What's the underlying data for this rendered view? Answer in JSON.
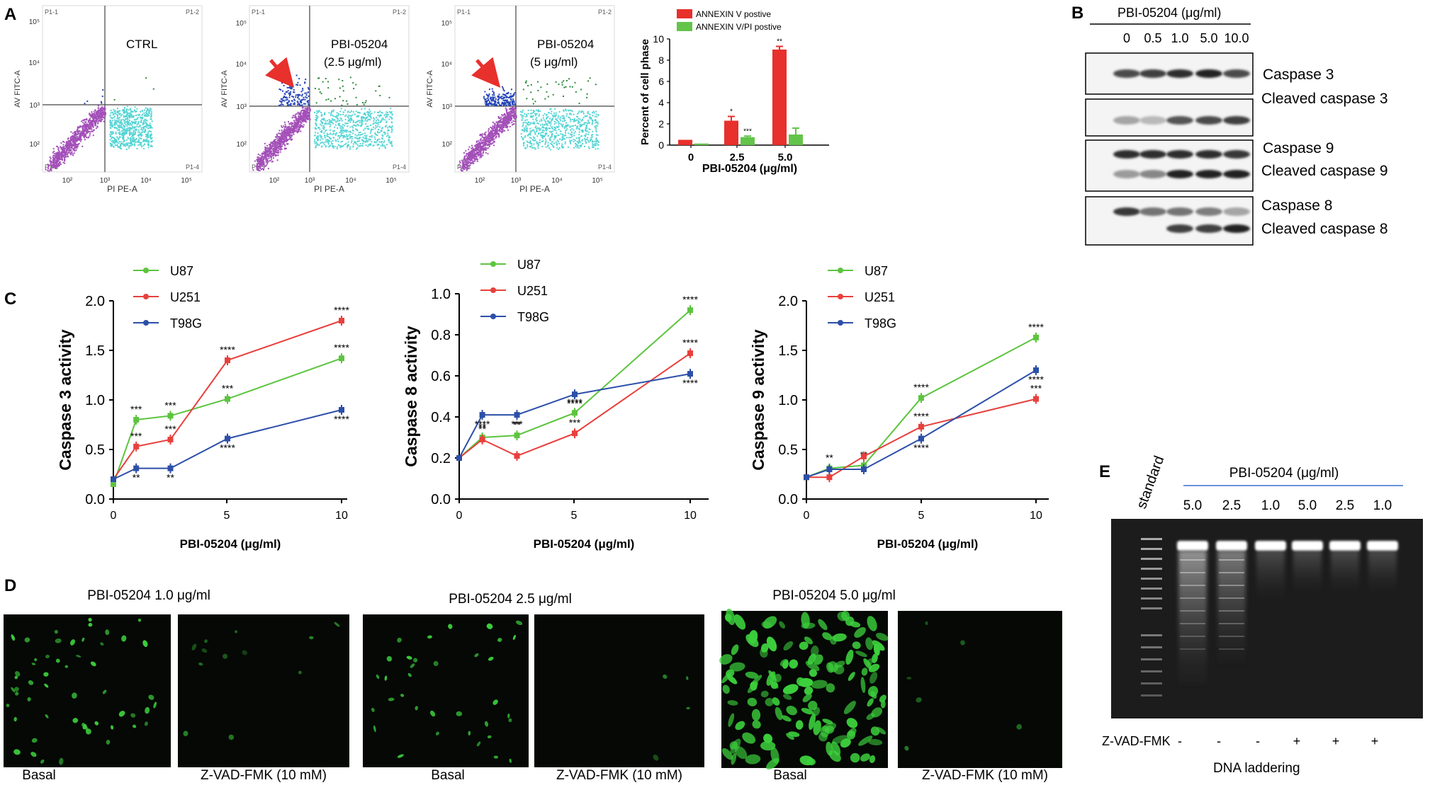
{
  "figure": {
    "panel_labels": [
      "A",
      "B",
      "C",
      "D",
      "E"
    ],
    "colors": {
      "u87": "#5cc43f",
      "u251": "#e8403c",
      "t98g": "#2c4fa8",
      "annexin_v": "#e8302c",
      "annexin_pi": "#63c44a",
      "flow_live": "#a34fb8",
      "flow_dead": "#56d4d4",
      "flow_early": "#2444b8",
      "flow_late": "#2e8a3a",
      "arrow": "#e8302c",
      "gel_bg": "#1c1c1c",
      "cell_green": "#3ccf3c",
      "divider_blue": "#3a6fd0"
    }
  },
  "panel_a": {
    "flow_plots": [
      {
        "quad_labels": [
          "P1-1",
          "P1-2",
          "P1-3",
          "P1-4"
        ],
        "annotation_line1": "CTRL",
        "annotation_line2": "",
        "xlabel": "PI PE-A",
        "ylabel": "AV FITC-A"
      },
      {
        "quad_labels": [
          "P1-1",
          "P1-2",
          "P1-3",
          "P1-4"
        ],
        "annotation_line1": "PBI-05204",
        "annotation_line2": "(2.5 μg/ml)",
        "xlabel": "PI PE-A",
        "ylabel": "AV FITC-A"
      },
      {
        "quad_labels": [
          "P1-1",
          "P1-2",
          "P1-3",
          "P1-4"
        ],
        "annotation_line1": "PBI-05204",
        "annotation_line2": "(5 μg/ml)",
        "xlabel": "PI PE-A",
        "ylabel": "AV FITC-A"
      }
    ],
    "x_ticks": [
      "10²",
      "10³",
      "10⁴",
      "10⁵"
    ],
    "y_ticks": [
      "10²",
      "10³",
      "10⁴",
      "10⁵"
    ],
    "bar_chart": {
      "type": "bar",
      "title": "",
      "xlabel": "PBI-05204 (μg/ml)",
      "ylabel": "Percent of cell phase",
      "ylim": [
        0,
        10
      ],
      "yticks": [
        "0",
        "2",
        "4",
        "6",
        "8",
        "10"
      ],
      "categories": [
        "0",
        "2.5",
        "5.0"
      ],
      "series": [
        {
          "name": "ANNEXIN V postive",
          "values": [
            0.5,
            2.3,
            9.0
          ],
          "errors": [
            0,
            0.4,
            0.3
          ],
          "sig": [
            "",
            "*",
            "**"
          ]
        },
        {
          "name": "ANNEXIN V/PI postive",
          "values": [
            0.15,
            0.75,
            1.0
          ],
          "errors": [
            0,
            0.1,
            0.6
          ],
          "sig": [
            "",
            "***",
            ""
          ]
        }
      ]
    }
  },
  "panel_b": {
    "header": "PBI-05204 (μg/ml)",
    "lanes": [
      "0",
      "0.5",
      "1.0",
      "5.0",
      "10.0"
    ],
    "bands": [
      "Caspase 3",
      "Cleaved caspase 3",
      "Caspase 9",
      "Cleaved caspase 9",
      "Caspase 8",
      "Cleaved caspase 8"
    ]
  },
  "chart_data": [
    {
      "type": "line",
      "title": "",
      "xlabel": "PBI-05204 (μg/ml)",
      "ylabel": "Caspase 3 activity",
      "x": [
        0,
        1,
        2.5,
        5,
        10
      ],
      "xlim": [
        0,
        11
      ],
      "ylim": [
        0,
        2.0
      ],
      "xticks": [
        "0",
        "5",
        "10"
      ],
      "yticks": [
        "0.0",
        "0.5",
        "1.0",
        "1.5",
        "2.0"
      ],
      "series": [
        {
          "name": "U87",
          "values": [
            0.15,
            0.8,
            0.84,
            1.01,
            1.42
          ],
          "sig": [
            "",
            "***",
            "***",
            "***",
            "****"
          ]
        },
        {
          "name": "U251",
          "values": [
            0.2,
            0.53,
            0.6,
            1.4,
            1.8
          ],
          "sig": [
            "",
            "***",
            "***",
            "****",
            "****"
          ]
        },
        {
          "name": "T98G",
          "values": [
            0.2,
            0.31,
            0.31,
            0.61,
            0.9
          ],
          "sig": [
            "",
            "**",
            "**",
            "****",
            "****"
          ]
        }
      ]
    },
    {
      "type": "line",
      "title": "",
      "xlabel": "PBI-05204 (μg/ml)",
      "ylabel": "Caspase 8 activity",
      "x": [
        0,
        1,
        2.5,
        5,
        10
      ],
      "xlim": [
        0,
        11
      ],
      "ylim": [
        0,
        1.0
      ],
      "xticks": [
        "0",
        "5",
        "10"
      ],
      "yticks": [
        "0.0",
        "0.2",
        "0.4",
        "0.6",
        "0.8",
        "1.0"
      ],
      "series": [
        {
          "name": "U87",
          "values": [
            0.2,
            0.3,
            0.31,
            0.42,
            0.92
          ],
          "sig": [
            "",
            "**",
            "**",
            "****",
            "****"
          ]
        },
        {
          "name": "U251",
          "values": [
            0.2,
            0.29,
            0.21,
            0.32,
            0.71
          ],
          "sig": [
            "",
            "**",
            "",
            "***",
            "****"
          ]
        },
        {
          "name": "T98G",
          "values": [
            0.2,
            0.41,
            0.41,
            0.51,
            0.61
          ],
          "sig": [
            "",
            "****",
            "***",
            "****",
            "****"
          ]
        }
      ]
    },
    {
      "type": "line",
      "title": "",
      "xlabel": "PBI-05204 (μg/ml)",
      "ylabel": "Caspase 9 activity",
      "x": [
        0,
        1,
        2.5,
        5,
        10
      ],
      "xlim": [
        0,
        11
      ],
      "ylim": [
        0,
        2.0
      ],
      "xticks": [
        "0",
        "5",
        "10"
      ],
      "yticks": [
        "0.0",
        "0.5",
        "1.0",
        "1.5",
        "2.0"
      ],
      "series": [
        {
          "name": "U87",
          "values": [
            0.22,
            0.31,
            0.34,
            1.02,
            1.63
          ],
          "sig": [
            "",
            "**",
            "**",
            "****",
            "****"
          ]
        },
        {
          "name": "U251",
          "values": [
            0.22,
            0.22,
            0.43,
            0.73,
            1.01
          ],
          "sig": [
            "",
            "",
            "",
            "****",
            "***"
          ]
        },
        {
          "name": "T98G",
          "values": [
            0.22,
            0.3,
            0.3,
            0.61,
            1.3
          ],
          "sig": [
            "",
            "",
            "",
            "****",
            "****"
          ]
        }
      ]
    }
  ],
  "panel_d": {
    "groups": [
      {
        "title": "PBI-05204 1.0 μg/ml",
        "left_caption": "Basal",
        "right_caption": "Z-VAD-FMK (10 mM)"
      },
      {
        "title": "PBI-05204 2.5 μg/ml",
        "left_caption": "Basal",
        "right_caption": "Z-VAD-FMK (10 mM)"
      },
      {
        "title": "PBI-05204 5.0 μg/ml",
        "left_caption": "Basal",
        "right_caption": "Z-VAD-FMK (10 mM)"
      }
    ]
  },
  "panel_e": {
    "standard_label": "standard",
    "header": "PBI-05204 (μg/ml)",
    "lanes": [
      "5.0",
      "2.5",
      "1.0",
      "5.0",
      "2.5",
      "1.0"
    ],
    "zvad_label": "Z-VAD-FMK",
    "zvad_signs": [
      "-",
      "-",
      "-",
      "+",
      "+",
      "+"
    ],
    "caption": "DNA laddering"
  }
}
